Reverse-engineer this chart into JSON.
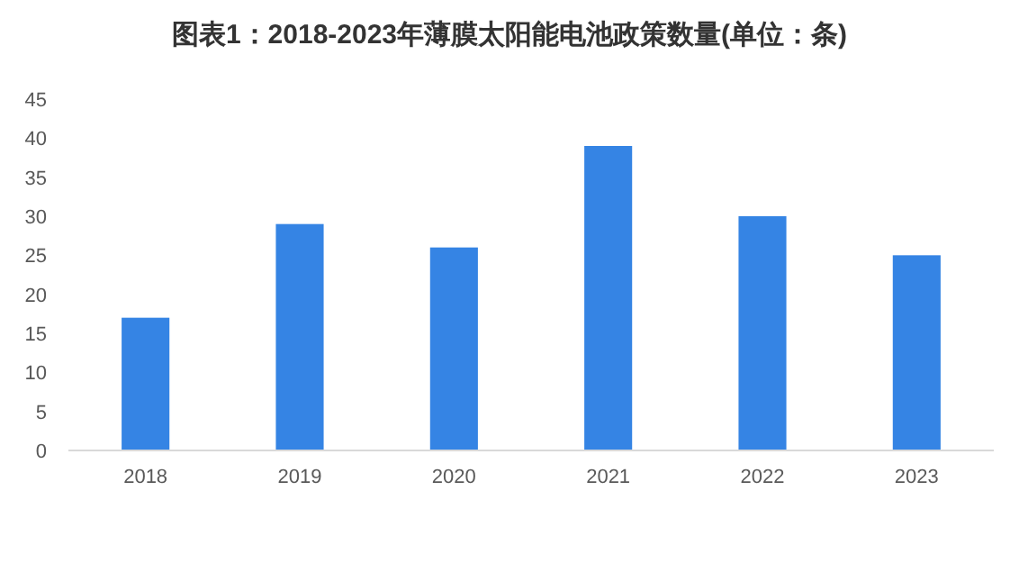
{
  "chart_data": {
    "type": "bar",
    "title": "图表1：2018-2023年薄膜太阳能电池政策数量(单位：条)",
    "categories": [
      "2018",
      "2019",
      "2020",
      "2021",
      "2022",
      "2023"
    ],
    "values": [
      17,
      29,
      26,
      39,
      30,
      25
    ],
    "color": "#3584e4",
    "ylim": [
      0,
      45
    ],
    "yticks": [
      0,
      5,
      10,
      15,
      20,
      25,
      30,
      35,
      40,
      45
    ],
    "grid": false
  }
}
